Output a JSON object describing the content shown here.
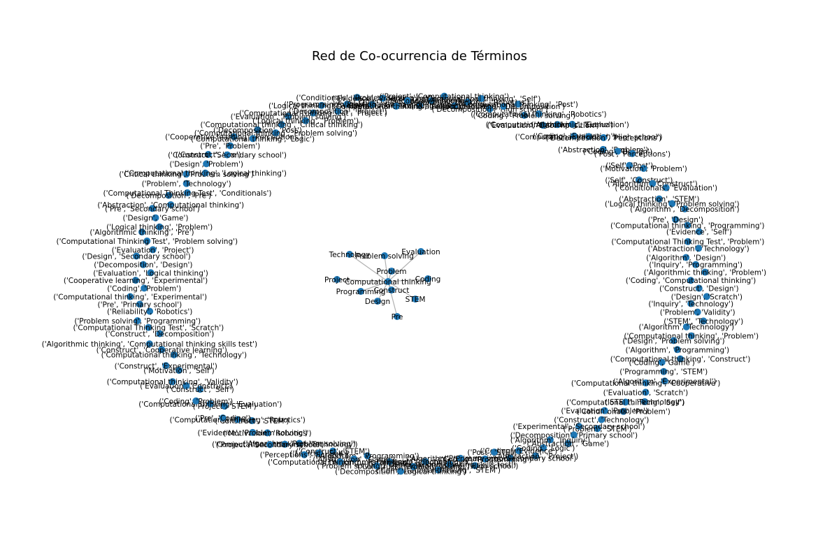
{
  "title": "Red de Co-ocurrencia de Términos",
  "node_color": "#1f77b4",
  "edge_color": "#b0b0b0",
  "central_nodes": [
    "Computational thinking",
    "Problem solving",
    "Technology",
    "Evaluation",
    "Problem",
    "Project",
    "Programming",
    "Construct",
    "Coding",
    "Design",
    "STEM",
    "Pre"
  ],
  "edges": [
    [
      "Computational thinking",
      "Problem solving"
    ],
    [
      "Computational thinking",
      "Technology"
    ],
    [
      "Computational thinking",
      "Evaluation"
    ],
    [
      "Computational thinking",
      "Problem"
    ],
    [
      "Computational thinking",
      "Project"
    ],
    [
      "Computational thinking",
      "Programming"
    ],
    [
      "Computational thinking",
      "Construct"
    ],
    [
      "Computational thinking",
      "Coding"
    ],
    [
      "Computational thinking",
      "Design"
    ],
    [
      "Computational thinking",
      "STEM"
    ],
    [
      "Computational thinking",
      "Pre"
    ]
  ],
  "ring_nodes": [
    "('Computational thinking skills test', 'Pre')",
    "('Evidence', 'Technology')",
    "('Project', 'Computational thinking')",
    "('Evaluation', 'Problem')",
    "('Algorithmic thinking', 'Robotics')",
    "('Computational thinking', 'Self')",
    "('Decomposition', 'High school')",
    "('Programming', 'Decomposition')",
    "('Computational thinking', 'Post')",
    "('Coding', 'Problem solving')",
    "('Computational thinking', 'Robotics')",
    "('Evaluation', 'Decomposition')",
    "('Computational thinking', 'Evaluation')",
    "('Algorithmic', 'Game')",
    "('Coding', 'Evaluation')",
    "('Computational thinking', 'High school')",
    "('Decomposition', 'Perceptions')",
    "('Abstraction', 'Problem')",
    "('Coding', 'Design')",
    "('Post', 'Perceptions')",
    "('Self', 'Post')",
    "('Motivation', 'Problem')",
    "('Self', 'Construct')",
    "('Algorithm', 'Construct')",
    "('Conditionals', 'Evaluation')",
    "('Abstraction', 'STEM')",
    "('Logical thinking', 'Problem solving')",
    "('Algorithm', 'Decomposition')",
    "('Pre', 'Design')",
    "('Computational thinking', 'Programming')",
    "('Evidence', 'Self')",
    "('Computational Thinking Test', 'Problem')",
    "('Abstraction', 'Technology')",
    "('Algorithm', 'Design')",
    "('Inquiry', 'Programming')",
    "('Algorithmic thinking', 'Problem')",
    "('Coding', 'Computational thinking')",
    "('Construct', 'Design')",
    "('Design', 'Scratch')",
    "('Inquiry', 'Technology')",
    "('Problem', 'Validity')",
    "('STEM', 'Technology')",
    "('Algorithm', 'Technology')",
    "('Computational thinking', 'Problem')",
    "('Design', 'Problem solving')",
    "('Algorithm', 'Programming')",
    "('Computational thinking', 'Construct')",
    "('Coding', 'Game')",
    "('Programming', 'STEM')",
    "('Algorithm', 'Experimental')",
    "('Computational thinking', 'Cooperative')",
    "('Evaluation', 'Scratch')",
    "('STEM', 'Technology')",
    "('Computational thinking', 'Self')",
    "('Conditionals', 'Problem')",
    "('Evaluation', 'Problem')",
    "('Construct', 'Technology')",
    "('Problem', 'STEM')",
    "('Experimental', 'Secondary school')",
    "('Decomposition', 'Primary school')",
    "('Abstraction', 'Game')",
    "('Algorithm', 'Inquiry')",
    "('Coding', 'Logic')",
    "('Abstraction', 'Project')",
    "('Coding', 'Evidence')",
    "('Programming', 'Secondary school')",
    "('Post', 'STEM')",
    "('Coding', 'Programming')",
    "('Coding', 'High school')",
    "('Algorithm', 'Primary school')",
    "('Computational thinking skills test')",
    "('Computational thinking', 'STEM')",
    "('Design', 'Technology')",
    "('Construct', 'Problem solving')",
    "('Decomposition', 'Logical thinking')",
    "('Algorithmic thinking', 'Robotics')",
    "('Problem solving', 'High school')",
    "('Algorithm', 'Programming')",
    "('Abstraction', 'Game')",
    "('Computational thinking', 'Parallelism')",
    "('Construct', 'STEM')",
    "('Logical', 'Self')",
    "('Perceptions', 'Scratch')",
    "('Algorithm', 'Problem solving')",
    "('Computational thinking', 'Technology')",
    "('Project', 'Secondary school')",
    "('Motivation', 'Robotics')",
    "('Evidence', 'Problem solving')",
    "('Construct', 'STEM')",
    "('Computational thinking', 'Robotics')",
    "('Pre', 'Coding')",
    "('Project', 'STEM')",
    "('Computational thinking', 'Evaluation')",
    "('Coding', 'Problem')",
    "('Construct', 'Self')",
    "('Evaluation', 'Construct')",
    "('Computational thinking', 'Validity')",
    "('Motivation', 'Self')",
    "('Construct', 'Experimental')",
    "('Computational thinking', 'Technology')",
    "('Construct', 'Cooperative learning')",
    "('Algorithmic thinking', 'Computational thinking skills test')",
    "('Construct', 'Decomposition')",
    "('Computational Thinking Test', 'Scratch')",
    "('Problem solving', 'Programming')",
    "('Reliability', 'Robotics')",
    "('Pre', 'Primary school')",
    "('Computational thinking', 'Experimental')",
    "('Coding', 'Problem')",
    "('Cooperative learning', 'Experimental')",
    "('Evaluation', 'Logical thinking')",
    "('Decomposition', 'Design')",
    "('Design', 'Secondary school')",
    "('Evaluation', 'Project')",
    "('Computational Thinking Test', 'Problem solving')",
    "('Algorithmic thinking', 'Pre')",
    "('Logical thinking', 'Problem')",
    "('Design', 'Game')",
    "('Pre', 'Secondary school')",
    "('Abstraction', 'Computational thinking')",
    "('Decomposition', 'Pre')",
    "('Computational Thinking Test', 'Conditionals')",
    "('Problem', 'Technology')",
    "('Critical thinking', 'Problem solving')",
    "('Computational thinking', 'Logical thinking')",
    "('Design', 'Problem')",
    "('Construct', 'Pre')",
    "('Construct', 'Secondary school')",
    "('Pre', 'Problem')",
    "('Cooperative learning', 'Perceptions')",
    "('Computational thinking', 'Logic')",
    "('Decomposition', 'Post')",
    "('Computational thinking', 'Problem solving')",
    "('Computational thinking', 'Critical thinking')",
    "('Evaluation', 'Problem solving')",
    "('Logical thinking', 'Problem')",
    "('Computational Thinking Test', 'Project')",
    "('Logical thinking', 'Problem')",
    "('Decomposition', 'Project')",
    "('Programming', 'Problem solving')",
    "('Conditionals', 'Problem solving')",
    "('Evaluation', 'Game')",
    "('Evidence', 'Programming')",
    "('Computational thinking', 'Project')",
    "('Project', 'Secondary school')"
  ]
}
